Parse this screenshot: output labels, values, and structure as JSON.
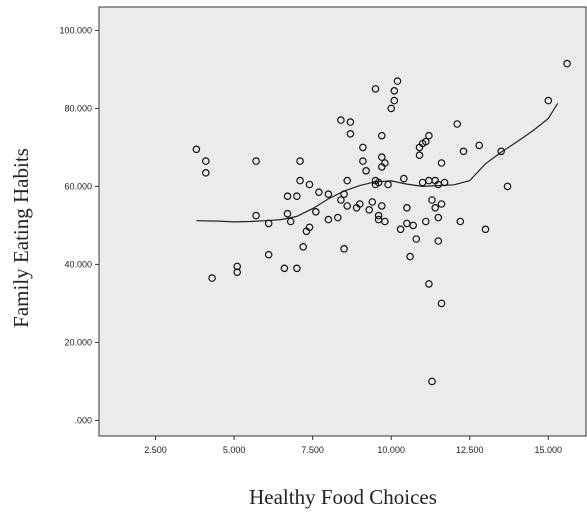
{
  "chart_data": {
    "type": "scatter",
    "title": "",
    "xlabel": "Healthy Food Choices",
    "ylabel": "Family Eating Habits",
    "xlim": [
      0.7,
      16.2
    ],
    "ylim": [
      -4,
      106
    ],
    "x_ticks": [
      2.5,
      5.0,
      7.5,
      10.0,
      12.5,
      15.0
    ],
    "x_tick_labels": [
      "2.500",
      "5.000",
      "7.500",
      "10.000",
      "12.500",
      "15.000"
    ],
    "y_ticks": [
      0,
      20,
      40,
      60,
      80,
      100
    ],
    "y_tick_labels": [
      ".000",
      "20.000",
      "40.000",
      "60.000",
      "80.000",
      "100.000"
    ],
    "grid": false,
    "legend": "none",
    "plot_background": "#ebebeb",
    "marker_color": "#111111",
    "series": [
      {
        "name": "",
        "kind": "points",
        "x": [
          3.8,
          4.1,
          4.1,
          4.3,
          5.1,
          5.1,
          5.7,
          5.7,
          6.1,
          6.1,
          6.6,
          6.7,
          6.7,
          6.8,
          7.0,
          7.0,
          7.1,
          7.1,
          7.2,
          7.3,
          7.4,
          7.4,
          7.6,
          7.7,
          8.0,
          8.0,
          8.3,
          8.4,
          8.4,
          8.5,
          8.5,
          8.6,
          8.6,
          8.7,
          8.7,
          8.9,
          9.0,
          9.1,
          9.1,
          9.2,
          9.3,
          9.4,
          9.5,
          9.5,
          9.5,
          9.6,
          9.6,
          9.6,
          9.7,
          9.7,
          9.7,
          9.7,
          9.8,
          9.8,
          9.9,
          10.0,
          10.1,
          10.1,
          10.2,
          10.3,
          10.4,
          10.5,
          10.5,
          10.6,
          10.7,
          10.8,
          10.9,
          10.9,
          11.0,
          11.0,
          11.1,
          11.1,
          11.2,
          11.2,
          11.2,
          11.3,
          11.3,
          11.4,
          11.4,
          11.5,
          11.5,
          11.5,
          11.6,
          11.6,
          11.6,
          11.7,
          12.1,
          12.2,
          12.3,
          12.8,
          13.0,
          13.5,
          13.7,
          15.0,
          15.6
        ],
        "y": [
          69.5,
          66.5,
          63.5,
          36.5,
          39.5,
          38.0,
          66.5,
          52.5,
          50.5,
          42.5,
          39.0,
          53.0,
          57.5,
          51.0,
          57.5,
          39.0,
          61.5,
          66.5,
          44.5,
          48.5,
          60.5,
          49.5,
          53.5,
          58.5,
          51.5,
          58.0,
          52.0,
          56.5,
          77.0,
          58.0,
          44.0,
          55.0,
          61.5,
          76.5,
          73.5,
          54.5,
          55.5,
          70.0,
          66.5,
          64.0,
          54.0,
          56.0,
          60.5,
          61.5,
          85.0,
          51.5,
          52.5,
          61.0,
          73.0,
          67.5,
          65.0,
          55.0,
          51.0,
          66.0,
          60.5,
          80.0,
          84.5,
          82.0,
          87.0,
          49.0,
          62.0,
          50.5,
          54.5,
          42.0,
          50.0,
          46.5,
          70.0,
          68.0,
          71.0,
          61.0,
          51.0,
          71.5,
          73.0,
          35.0,
          61.5,
          10.0,
          56.5,
          54.5,
          61.5,
          60.5,
          52.0,
          46.0,
          66.0,
          55.5,
          30.0,
          61.0,
          76.0,
          51.0,
          69.0,
          70.5,
          49.0,
          69.0,
          60.0,
          82.0,
          91.5
        ]
      },
      {
        "name": "",
        "kind": "fit-line",
        "x": [
          3.8,
          4.5,
          5.0,
          5.5,
          6.0,
          6.5,
          7.0,
          7.5,
          8.0,
          8.5,
          9.0,
          9.5,
          10.0,
          10.5,
          11.0,
          11.5,
          12.0,
          12.5,
          13.0,
          13.5,
          14.0,
          14.5,
          15.0,
          15.3
        ],
        "y": [
          51.2,
          51.1,
          50.9,
          51.0,
          51.2,
          51.5,
          52.3,
          54.3,
          56.8,
          58.8,
          60.2,
          61.2,
          61.4,
          60.6,
          60.0,
          60.2,
          60.4,
          61.5,
          65.8,
          68.8,
          71.4,
          74.2,
          77.4,
          81.3
        ]
      }
    ]
  }
}
